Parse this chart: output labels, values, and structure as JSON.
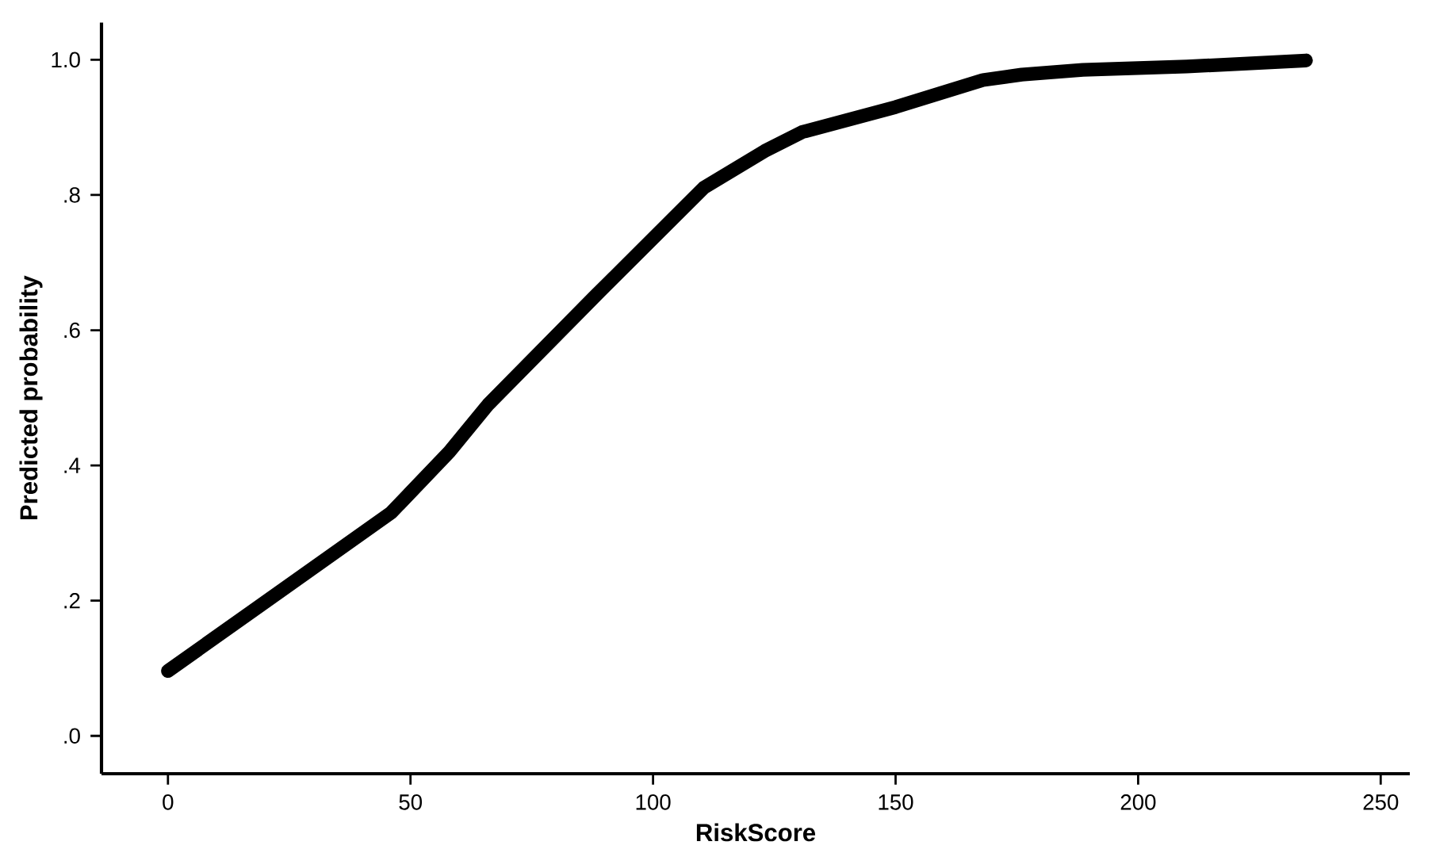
{
  "chart_data": {
    "type": "line",
    "xlabel": "RiskScore",
    "ylabel": "Predicted probability",
    "x": [
      0,
      46,
      58,
      66,
      88,
      110.5,
      123,
      130.7,
      150,
      168,
      176,
      188.6,
      210,
      234.6
    ],
    "values": [
      0.096,
      0.33,
      0.42,
      0.49,
      0.65,
      0.811,
      0.865,
      0.893,
      0.93,
      0.97,
      0.978,
      0.985,
      0.99,
      0.999
    ],
    "color": "#000000",
    "line_style": "solid",
    "marker": "none",
    "grid": false,
    "xlim": [
      -13.7,
      256
    ],
    "ylim": [
      -0.056,
      1.055
    ],
    "xticks": [
      0,
      50,
      100,
      150,
      200,
      250
    ],
    "yticks": [
      {
        "value": 0,
        "label": ".0"
      },
      {
        "value": 0.2,
        "label": ".2"
      },
      {
        "value": 0.4,
        "label": ".4"
      },
      {
        "value": 0.6,
        "label": ".6"
      },
      {
        "value": 0.8,
        "label": ".8"
      },
      {
        "value": 1.0,
        "label": "1.0"
      }
    ]
  }
}
